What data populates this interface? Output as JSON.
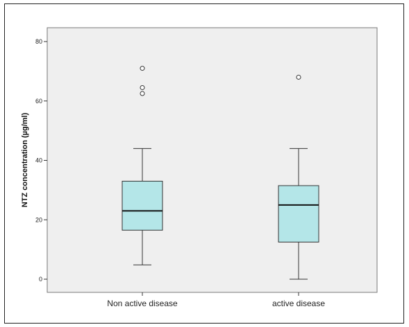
{
  "chart_data": {
    "type": "box",
    "title": "",
    "xlabel": "",
    "ylabel": "NTZ concentration (µg/ml)",
    "ylim": [
      -5,
      84
    ],
    "yticks": [
      0,
      20,
      40,
      60,
      80
    ],
    "grid": false,
    "colors": {
      "plot_background": "#efefef",
      "box_fill": "#b4e6e8",
      "box_stroke": "#333333",
      "median": "#111111"
    },
    "categories": [
      "Non active disease",
      "active disease"
    ],
    "boxes": [
      {
        "category": "Non active disease",
        "whisker_low": 4.8,
        "q1": 16.5,
        "median": 23,
        "q3": 33,
        "whisker_high": 44,
        "outliers": [
          62.5,
          64.5,
          71
        ]
      },
      {
        "category": "active disease",
        "whisker_low": 0,
        "q1": 12.5,
        "median": 25,
        "q3": 31.5,
        "whisker_high": 44,
        "outliers": [
          68
        ]
      }
    ]
  }
}
